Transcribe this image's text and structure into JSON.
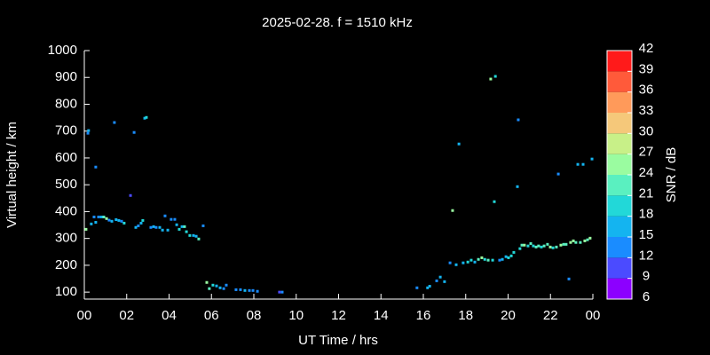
{
  "chart_data": {
    "type": "scatter",
    "title": "2025-02-28. f = 1510 kHz",
    "x_label": "UT Time / hrs",
    "y_label": "Virtual height / km",
    "colorbar_label": "SNR / dB",
    "xlim": [
      0,
      24
    ],
    "xticks": [
      {
        "value": 0,
        "label": "00"
      },
      {
        "value": 2,
        "label": "02"
      },
      {
        "value": 4,
        "label": "04"
      },
      {
        "value": 6,
        "label": "06"
      },
      {
        "value": 8,
        "label": "08"
      },
      10,
      12,
      14,
      16,
      18,
      20,
      22,
      {
        "value": 24,
        "label": "00"
      }
    ],
    "ylim": [
      74,
      1000
    ],
    "yticks": [
      100,
      200,
      300,
      400,
      500,
      600,
      700,
      800,
      900,
      1000
    ],
    "clim": [
      6,
      42
    ],
    "cticks": [
      6,
      9,
      12,
      15,
      18,
      21,
      24,
      27,
      30,
      33,
      36,
      39,
      42
    ],
    "colormap": [
      "#8c00ff",
      "#4b4bff",
      "#1a8cff",
      "#14b4f0",
      "#22d8d8",
      "#5af0c0",
      "#9afca0",
      "#c8f088",
      "#f5c87a",
      "#ff9a5a",
      "#ff5a3a",
      "#ff1a1a"
    ],
    "x": [
      0.08,
      0.17,
      0.2,
      0.33,
      0.46,
      0.54,
      0.54,
      0.67,
      0.8,
      0.92,
      1.05,
      1.17,
      1.3,
      1.42,
      1.5,
      1.63,
      1.76,
      1.88,
      2.18,
      2.35,
      2.43,
      2.55,
      2.68,
      2.76,
      2.85,
      2.93,
      3.14,
      3.27,
      3.39,
      3.56,
      3.69,
      3.81,
      3.94,
      4.1,
      4.27,
      4.36,
      4.48,
      4.61,
      4.73,
      4.82,
      4.98,
      5.15,
      5.28,
      5.4,
      5.61,
      5.78,
      5.9,
      6.07,
      6.24,
      6.41,
      6.58,
      6.7,
      7.16,
      7.37,
      7.58,
      7.79,
      7.96,
      8.17,
      9.21,
      9.34,
      15.7,
      16.2,
      16.3,
      16.63,
      16.8,
      17.0,
      17.26,
      17.38,
      17.55,
      17.68,
      17.88,
      18.1,
      18.26,
      18.43,
      18.6,
      18.76,
      18.9,
      19.06,
      19.18,
      19.27,
      19.35,
      19.4,
      19.6,
      19.73,
      19.9,
      20.02,
      20.15,
      20.27,
      20.44,
      20.48,
      20.56,
      20.65,
      20.77,
      20.94,
      21.07,
      21.19,
      21.32,
      21.44,
      21.57,
      21.7,
      21.86,
      21.99,
      22.12,
      22.28,
      22.37,
      22.49,
      22.62,
      22.74,
      22.87,
      22.95,
      23.08,
      23.2,
      23.29,
      23.41,
      23.54,
      23.62,
      23.75,
      23.87,
      23.96
    ],
    "y": [
      334,
      692,
      702,
      354,
      380,
      566,
      360,
      380,
      380,
      380,
      374,
      368,
      364,
      732,
      370,
      367,
      364,
      357,
      460,
      695,
      341,
      347,
      357,
      367,
      748,
      751,
      341,
      344,
      341,
      341,
      331,
      384,
      331,
      371,
      371,
      351,
      334,
      344,
      344,
      325,
      311,
      311,
      308,
      298,
      347,
      136,
      113,
      126,
      123,
      116,
      113,
      126,
      109,
      109,
      106,
      106,
      106,
      103,
      100,
      100,
      116,
      116,
      122,
      142,
      156,
      139,
      209,
      404,
      202,
      652,
      209,
      212,
      219,
      212,
      222,
      228,
      222,
      219,
      894,
      219,
      437,
      904,
      219,
      222,
      232,
      228,
      235,
      248,
      493,
      742,
      262,
      275,
      275,
      272,
      281,
      272,
      268,
      272,
      268,
      272,
      278,
      268,
      265,
      268,
      540,
      275,
      278,
      278,
      149,
      285,
      291,
      285,
      576,
      285,
      576,
      291,
      295,
      301,
      596
    ],
    "snr": [
      24,
      12,
      15,
      17,
      12,
      12,
      15,
      13,
      16,
      21,
      24,
      14,
      16,
      13,
      17,
      15,
      13,
      20,
      11,
      12,
      16,
      14,
      17,
      18,
      16,
      19,
      14,
      17,
      14,
      15,
      15,
      12,
      16,
      13,
      12,
      17,
      18,
      16,
      21,
      20,
      18,
      15,
      16,
      22,
      13,
      25,
      22,
      19,
      17,
      16,
      14,
      12,
      14,
      13,
      16,
      13,
      12,
      14,
      11,
      12,
      14,
      15,
      17,
      14,
      16,
      17,
      14,
      25,
      15,
      17,
      16,
      18,
      20,
      17,
      22,
      24,
      19,
      21,
      26,
      18,
      19,
      20,
      14,
      16,
      15,
      18,
      20,
      20,
      15,
      13,
      19,
      21,
      24,
      20,
      22,
      19,
      23,
      22,
      20,
      21,
      22,
      24,
      20,
      23,
      14,
      25,
      22,
      21,
      12,
      24,
      26,
      23,
      15,
      22,
      16,
      24,
      22,
      25,
      17
    ]
  }
}
